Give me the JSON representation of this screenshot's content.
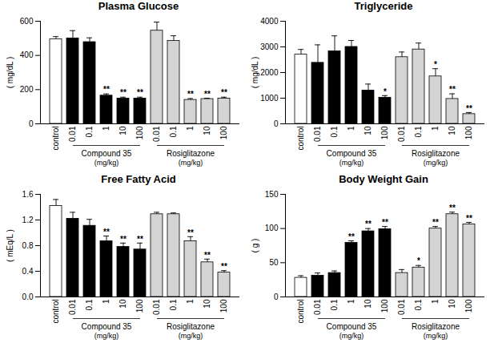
{
  "chart_data": [
    {
      "type": "bar",
      "title": "Plasma Glucose",
      "y_label": "( mg/dL )",
      "ylim": [
        0,
        600
      ],
      "yticks": [
        0,
        200,
        400,
        600
      ],
      "series": [
        {
          "color": "#ffffff",
          "categories": [
            "control"
          ],
          "values": [
            495
          ],
          "errors": [
            15
          ],
          "significance": [
            null
          ]
        },
        {
          "name": "Compound 35",
          "unit": "(mg/kg)",
          "color": "#000000",
          "categories": [
            "0.01",
            "0.1",
            "1",
            "10",
            "100"
          ],
          "values": [
            500,
            478,
            165,
            148,
            148
          ],
          "errors": [
            45,
            25,
            10,
            8,
            8
          ],
          "significance": [
            null,
            null,
            "**",
            "**",
            "**"
          ]
        },
        {
          "name": "Rosiglitazone",
          "unit": "(mg/kg)",
          "color": "#d4d4d4",
          "line_style": "hatched",
          "categories": [
            "0.01",
            "0.1",
            "1",
            "10",
            "100"
          ],
          "values": [
            545,
            485,
            140,
            145,
            148
          ],
          "errors": [
            50,
            30,
            8,
            5,
            8
          ],
          "significance": [
            null,
            null,
            "**",
            "**",
            "**"
          ]
        }
      ]
    },
    {
      "type": "bar",
      "title": "Triglyceride",
      "y_label": "( mg/dL )",
      "ylim": [
        0,
        4000
      ],
      "yticks": [
        0,
        1000,
        2000,
        3000,
        4000
      ],
      "series": [
        {
          "color": "#ffffff",
          "categories": [
            "control"
          ],
          "values": [
            2700
          ],
          "errors": [
            200
          ],
          "significance": [
            null
          ]
        },
        {
          "name": "Compound 35",
          "unit": "(mg/kg)",
          "color": "#000000",
          "categories": [
            "0.01",
            "0.1",
            "1",
            "10",
            "100"
          ],
          "values": [
            2380,
            2830,
            3000,
            1300,
            1020
          ],
          "errors": [
            700,
            600,
            250,
            250,
            80
          ],
          "significance": [
            null,
            null,
            null,
            null,
            "*"
          ]
        },
        {
          "name": "Rosiglitazone",
          "unit": "(mg/kg)",
          "color": "#d4d4d4",
          "line_style": "hatched",
          "categories": [
            "0.01",
            "0.1",
            "1",
            "10",
            "100"
          ],
          "values": [
            2600,
            2900,
            1850,
            970,
            380
          ],
          "errors": [
            200,
            250,
            300,
            200,
            60
          ],
          "significance": [
            null,
            null,
            "*",
            "**",
            "**"
          ]
        }
      ]
    },
    {
      "type": "bar",
      "title": "Free Fatty Acid",
      "y_label": "( mEq/L )",
      "ylim": [
        0,
        1.6
      ],
      "yticks": [
        {
          "value": 0,
          "label": "0.0"
        },
        0.4,
        0.8,
        1.2,
        1.6
      ],
      "series": [
        {
          "color": "#ffffff",
          "categories": [
            "control"
          ],
          "values": [
            1.42
          ],
          "errors": [
            0.1
          ],
          "significance": [
            null
          ]
        },
        {
          "name": "Compound 35",
          "unit": "(mg/kg)",
          "color": "#000000",
          "categories": [
            "0.01",
            "0.1",
            "1",
            "10",
            "100"
          ],
          "values": [
            1.22,
            1.11,
            0.87,
            0.78,
            0.74
          ],
          "errors": [
            0.1,
            0.1,
            0.08,
            0.06,
            0.1
          ],
          "significance": [
            null,
            null,
            "**",
            "**",
            "**"
          ]
        },
        {
          "name": "Rosiglitazone",
          "unit": "(mg/kg)",
          "color": "#d4d4d4",
          "line_style": "hatched",
          "categories": [
            "0.01",
            "0.1",
            "1",
            "10",
            "100"
          ],
          "values": [
            1.29,
            1.29,
            0.87,
            0.54,
            0.38
          ],
          "errors": [
            0.03,
            0.02,
            0.07,
            0.05,
            0.03
          ],
          "significance": [
            null,
            null,
            "**",
            "**",
            "**"
          ]
        }
      ]
    },
    {
      "type": "bar",
      "title": "Body Weight Gain",
      "y_label": "( g )",
      "ylim": [
        0,
        150
      ],
      "yticks": [
        0,
        50,
        100,
        150
      ],
      "series": [
        {
          "color": "#ffffff",
          "categories": [
            "control"
          ],
          "values": [
            28
          ],
          "errors": [
            3
          ],
          "significance": [
            null
          ]
        },
        {
          "name": "Compound 35",
          "unit": "(mg/kg)",
          "color": "#000000",
          "categories": [
            "0.01",
            "0.1",
            "1",
            "10",
            "100"
          ],
          "values": [
            31,
            35,
            79,
            96,
            99
          ],
          "errors": [
            4,
            3,
            3,
            4,
            4
          ],
          "significance": [
            null,
            null,
            "**",
            "**",
            "**"
          ]
        },
        {
          "name": "Rosiglitazone",
          "unit": "(mg/kg)",
          "color": "#d4d4d4",
          "line_style": "hatched",
          "categories": [
            "0.01",
            "0.1",
            "1",
            "10",
            "100"
          ],
          "values": [
            35,
            43,
            100,
            121,
            106
          ],
          "errors": [
            5,
            3,
            3,
            3,
            3
          ],
          "significance": [
            null,
            "*",
            "**",
            "**",
            "**"
          ]
        }
      ]
    }
  ]
}
